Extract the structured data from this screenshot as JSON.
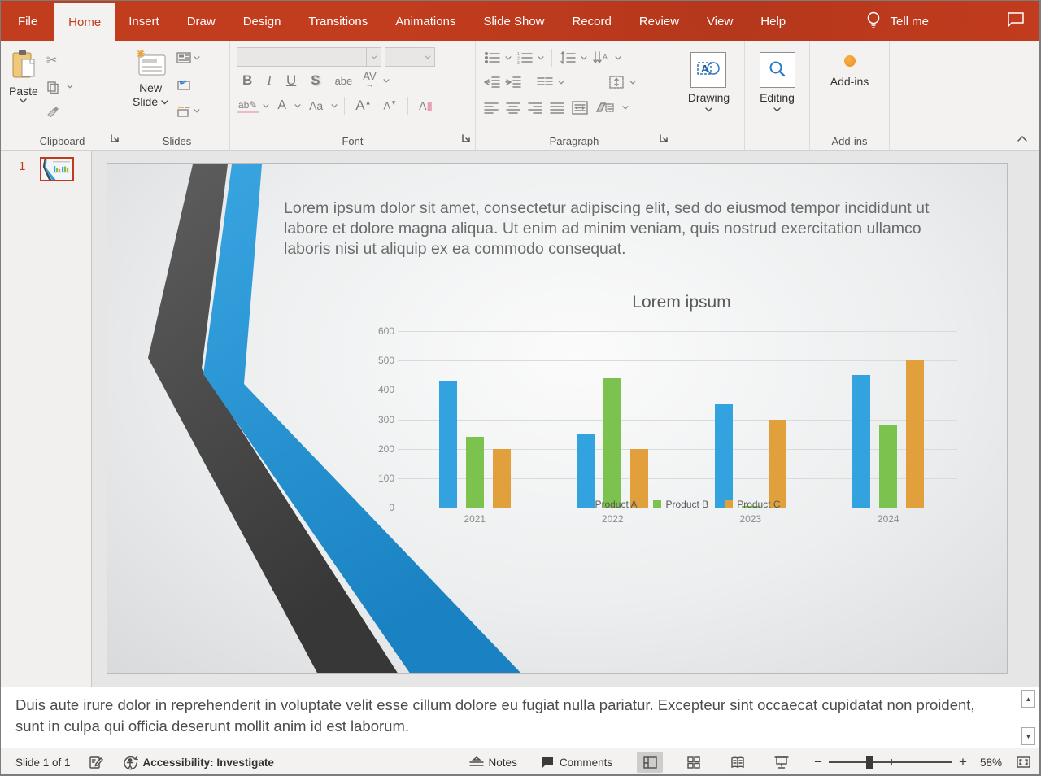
{
  "titlebar": {
    "tabs": [
      {
        "label": "File",
        "active": false
      },
      {
        "label": "Home",
        "active": true
      },
      {
        "label": "Insert",
        "active": false
      },
      {
        "label": "Draw",
        "active": false
      },
      {
        "label": "Design",
        "active": false
      },
      {
        "label": "Transitions",
        "active": false
      },
      {
        "label": "Animations",
        "active": false
      },
      {
        "label": "Slide Show",
        "active": false
      },
      {
        "label": "Record",
        "active": false
      },
      {
        "label": "Review",
        "active": false
      },
      {
        "label": "View",
        "active": false
      },
      {
        "label": "Help",
        "active": false
      }
    ],
    "tell_me": "Tell me"
  },
  "ribbon": {
    "clipboard": {
      "paste_label": "Paste",
      "group_label": "Clipboard"
    },
    "slides": {
      "new_slide_line1": "New",
      "new_slide_line2": "Slide",
      "group_label": "Slides"
    },
    "font": {
      "group_label": "Font",
      "bold": "B",
      "italic": "I",
      "underline": "U",
      "strikethrough_letter": "S",
      "strike_sample": "abe",
      "char_spacing": "AV",
      "highlight_sample": "ab",
      "font_color_letter": "A",
      "change_case": "Aa",
      "grow_letter": "A",
      "shrink_letter": "A",
      "clear_letter": "A"
    },
    "paragraph": {
      "group_label": "Paragraph"
    },
    "drawing": {
      "label": "Drawing"
    },
    "editing": {
      "label": "Editing"
    },
    "addins": {
      "button_label": "Add-ins",
      "group_label": "Add-ins"
    }
  },
  "slide_panel": {
    "slide_number": "1"
  },
  "slide": {
    "body_text": "Lorem ipsum dolor sit amet, consectetur adipiscing elit, sed do eiusmod tempor incididunt ut labore et dolore magna aliqua. Ut enim ad minim veniam, quis nostrud exercitation ullamco laboris nisi ut aliquip ex ea commodo consequat."
  },
  "chart_data": {
    "type": "bar",
    "title": "Lorem ipsum",
    "categories": [
      "2021",
      "2022",
      "2023",
      "2024"
    ],
    "series": [
      {
        "name": "Product A",
        "color": "#33A3E0",
        "values": [
          430,
          250,
          350,
          450
        ]
      },
      {
        "name": "Product B",
        "color": "#7CC24E",
        "values": [
          240,
          440,
          5,
          280
        ]
      },
      {
        "name": "Product C",
        "color": "#E2A03C",
        "values": [
          200,
          200,
          300,
          500
        ]
      }
    ],
    "xlabel": "",
    "ylabel": "",
    "ylim": [
      0,
      600
    ],
    "ytick_step": 100,
    "grid": true,
    "legend_position": "bottom"
  },
  "notes": {
    "text": "Duis aute irure dolor in reprehenderit in voluptate velit esse cillum dolore eu fugiat nulla pariatur. Excepteur sint occaecat cupidatat non proident, sunt in culpa qui officia deserunt mollit anim id est laborum."
  },
  "status_bar": {
    "slide_indicator": "Slide 1 of 1",
    "accessibility_label": "Accessibility: Investigate",
    "notes_label": "Notes",
    "comments_label": "Comments",
    "zoom_level": "58%"
  },
  "icons": {
    "lightbulb-icon": "bulb outline",
    "comment-icon": "speech bubble",
    "paste-icon": "clipboard+page",
    "cut-icon": "scissors",
    "copy-icon": "two pages",
    "format-painter-icon": "brush",
    "new-slide-icon": "slide+sparkle",
    "slide-layout-icon": "slide panes",
    "reset-slide-icon": "slide+undo arrow",
    "section-icon": "slide list",
    "bullets-icon": "dots+lines",
    "numbering-icon": "123+lines",
    "line-spacing-icon": "up-down arrows+lines",
    "text-direction-icon": "down arrows+A",
    "outdent-icon": "left arrow+lines",
    "indent-icon": "right arrow+lines",
    "columns-icon": "two line columns",
    "align-text-icon": "box up-down arrows",
    "align-left-icon": "lines left",
    "align-center-icon": "lines center",
    "align-right-icon": "lines right",
    "justify-icon": "full lines",
    "distribute-icon": "boxed lines",
    "smartart-icon": "shape+list",
    "drawing-icon": "A with shape",
    "editing-icon": "magnifier",
    "addins-icon": "orange dot",
    "spellcheck-icon": "book+pencil",
    "accessibility-icon": "person in circular arrow",
    "notes-status-icon": "flag+lines",
    "comments-status-icon": "filled bubble",
    "normal-view-icon": "pane layout",
    "slide-sorter-icon": "four squares",
    "reading-view-icon": "open book",
    "slideshow-icon": "projection screen",
    "zoom-out-icon": "minus",
    "zoom-in-icon": "plus",
    "fit-window-icon": "frame with arrows",
    "dialog-launcher-icon": "corner arrow",
    "chevron-down-icon": "v",
    "collapse-ribbon-icon": "chevron up",
    "scroll-up-icon": "triangle up",
    "scroll-down-icon": "triangle down"
  },
  "colors": {
    "accent": "#C13A1E",
    "series_a": "#33A3E0",
    "series_b": "#7CC24E",
    "series_c": "#E2A03C",
    "ribbon_bg": "#F3F2F1",
    "ribbon_dark_gray": "#4A4A4A",
    "chevron_blue": "#2E9FDC"
  }
}
